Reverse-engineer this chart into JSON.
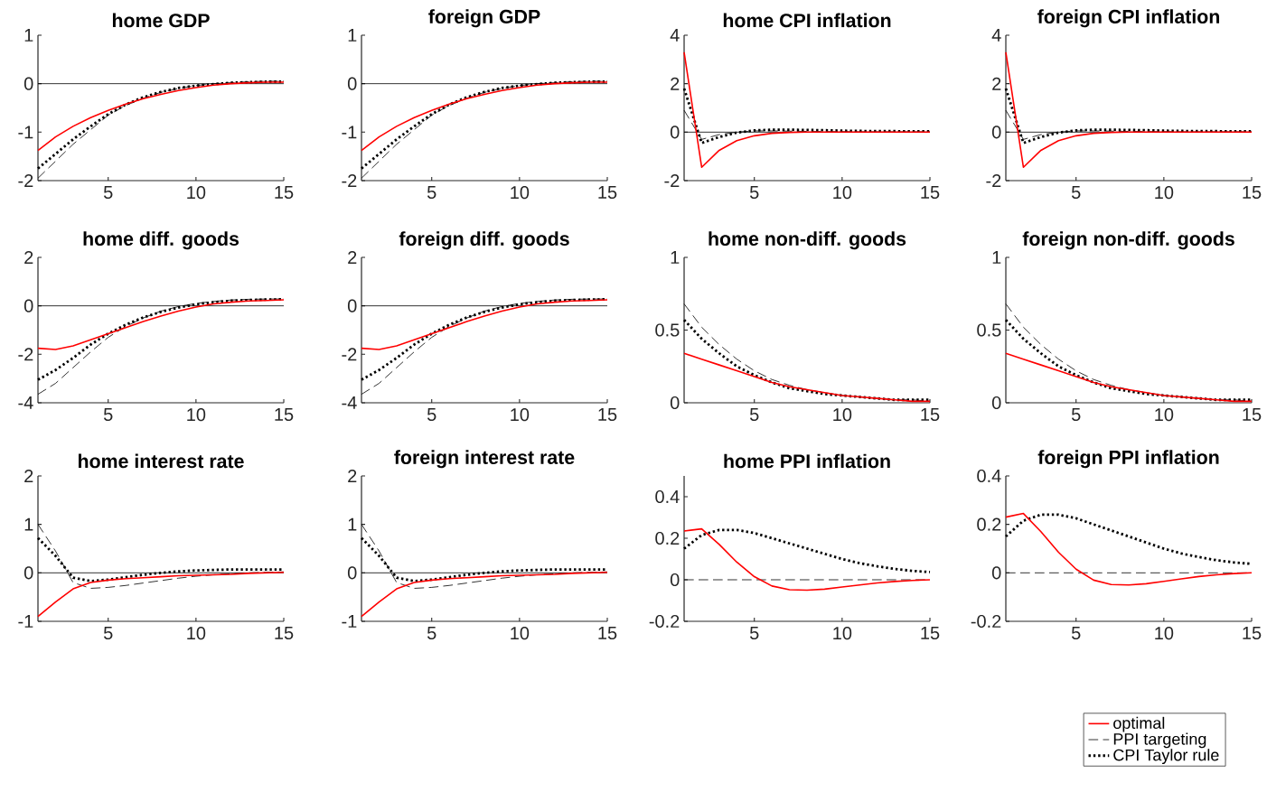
{
  "chart_data": [
    {
      "type": "line",
      "title": "home GDP",
      "x": [
        1,
        2,
        3,
        4,
        5,
        6,
        7,
        8,
        9,
        10,
        11,
        12,
        13,
        14,
        15
      ],
      "xlim": [
        1,
        15
      ],
      "xticks": [
        5,
        10,
        15
      ],
      "ylim": [
        -2,
        1
      ],
      "yticks": [
        -2,
        -1,
        0,
        1
      ],
      "ref_lines": [
        {
          "axis": "y",
          "value": 0,
          "color": "#000000"
        }
      ],
      "series": [
        {
          "color": "#ff0000",
          "line_style": "solid",
          "values": [
            -1.38,
            -1.1,
            -0.88,
            -0.7,
            -0.55,
            -0.42,
            -0.31,
            -0.22,
            -0.14,
            -0.08,
            -0.03,
            0.0,
            0.02,
            0.03,
            0.03
          ]
        },
        {
          "color": "#000000",
          "line_style": "dashed",
          "values": [
            -1.95,
            -1.6,
            -1.25,
            -0.95,
            -0.65,
            -0.45,
            -0.3,
            -0.18,
            -0.1,
            -0.04,
            0.0,
            0.02,
            0.04,
            0.05,
            0.05
          ]
        },
        {
          "color": "#000000",
          "line_style": "dotted",
          "values": [
            -1.75,
            -1.45,
            -1.15,
            -0.88,
            -0.63,
            -0.43,
            -0.28,
            -0.17,
            -0.09,
            -0.04,
            -0.01,
            0.02,
            0.03,
            0.04,
            0.04
          ]
        }
      ]
    },
    {
      "type": "line",
      "title": "foreign GDP",
      "x": [
        1,
        2,
        3,
        4,
        5,
        6,
        7,
        8,
        9,
        10,
        11,
        12,
        13,
        14,
        15
      ],
      "xlim": [
        1,
        15
      ],
      "xticks": [
        5,
        10,
        15
      ],
      "ylim": [
        -2,
        1
      ],
      "yticks": [
        -2,
        -1,
        0,
        1
      ],
      "ref_lines": [
        {
          "axis": "y",
          "value": 0,
          "color": "#000000"
        }
      ],
      "series": [
        {
          "color": "#ff0000",
          "line_style": "solid",
          "values": [
            -1.38,
            -1.1,
            -0.88,
            -0.7,
            -0.55,
            -0.42,
            -0.31,
            -0.22,
            -0.14,
            -0.08,
            -0.03,
            0.0,
            0.02,
            0.03,
            0.03
          ]
        },
        {
          "color": "#000000",
          "line_style": "dashed",
          "values": [
            -1.95,
            -1.6,
            -1.25,
            -0.95,
            -0.65,
            -0.45,
            -0.3,
            -0.18,
            -0.1,
            -0.04,
            0.0,
            0.02,
            0.04,
            0.05,
            0.05
          ]
        },
        {
          "color": "#000000",
          "line_style": "dotted",
          "values": [
            -1.75,
            -1.45,
            -1.15,
            -0.88,
            -0.63,
            -0.43,
            -0.28,
            -0.17,
            -0.09,
            -0.04,
            -0.01,
            0.02,
            0.03,
            0.04,
            0.04
          ]
        }
      ]
    },
    {
      "type": "line",
      "title": "home CPI inflation",
      "x": [
        1,
        2,
        3,
        4,
        5,
        6,
        7,
        8,
        9,
        10,
        11,
        12,
        13,
        14,
        15
      ],
      "xlim": [
        1,
        15
      ],
      "xticks": [
        5,
        10,
        15
      ],
      "ylim": [
        -2,
        4
      ],
      "yticks": [
        -2,
        0,
        2,
        4
      ],
      "ref_lines": [
        {
          "axis": "y",
          "value": 0,
          "color": "#000000"
        }
      ],
      "series": [
        {
          "color": "#ff0000",
          "line_style": "solid",
          "values": [
            3.3,
            -1.45,
            -0.75,
            -0.35,
            -0.15,
            -0.05,
            -0.01,
            0,
            0,
            0,
            0,
            0,
            0,
            0,
            0
          ]
        },
        {
          "color": "#000000",
          "line_style": "dashed",
          "values": [
            0.9,
            -0.3,
            -0.1,
            0.0,
            0.05,
            0.05,
            0.04,
            0.03,
            0.02,
            0.02,
            0.01,
            0.01,
            0.01,
            0.01,
            0.01
          ]
        },
        {
          "color": "#000000",
          "line_style": "dotted",
          "values": [
            1.8,
            -0.45,
            -0.2,
            -0.02,
            0.07,
            0.1,
            0.1,
            0.09,
            0.08,
            0.06,
            0.05,
            0.04,
            0.04,
            0.03,
            0.03
          ]
        }
      ]
    },
    {
      "type": "line",
      "title": "foreign CPI inflation",
      "x": [
        1,
        2,
        3,
        4,
        5,
        6,
        7,
        8,
        9,
        10,
        11,
        12,
        13,
        14,
        15
      ],
      "xlim": [
        1,
        15
      ],
      "xticks": [
        5,
        10,
        15
      ],
      "ylim": [
        -2,
        4
      ],
      "yticks": [
        -2,
        0,
        2,
        4
      ],
      "ref_lines": [
        {
          "axis": "y",
          "value": 0,
          "color": "#000000"
        }
      ],
      "series": [
        {
          "color": "#ff0000",
          "line_style": "solid",
          "values": [
            3.3,
            -1.45,
            -0.75,
            -0.35,
            -0.15,
            -0.05,
            -0.01,
            0,
            0,
            0,
            0,
            0,
            0,
            0,
            0
          ]
        },
        {
          "color": "#000000",
          "line_style": "dashed",
          "values": [
            0.9,
            -0.3,
            -0.1,
            0.0,
            0.05,
            0.05,
            0.04,
            0.03,
            0.02,
            0.02,
            0.01,
            0.01,
            0.01,
            0.01,
            0.01
          ]
        },
        {
          "color": "#000000",
          "line_style": "dotted",
          "values": [
            1.8,
            -0.45,
            -0.2,
            -0.02,
            0.07,
            0.1,
            0.1,
            0.09,
            0.08,
            0.06,
            0.05,
            0.04,
            0.04,
            0.03,
            0.03
          ]
        }
      ]
    },
    {
      "type": "line",
      "title": "home diff. goods",
      "x": [
        1,
        2,
        3,
        4,
        5,
        6,
        7,
        8,
        9,
        10,
        11,
        12,
        13,
        14,
        15
      ],
      "xlim": [
        1,
        15
      ],
      "xticks": [
        5,
        10,
        15
      ],
      "ylim": [
        -4,
        2
      ],
      "yticks": [
        -4,
        -2,
        0,
        2
      ],
      "ref_lines": [
        {
          "axis": "y",
          "value": 0,
          "color": "#000000"
        }
      ],
      "series": [
        {
          "color": "#ff0000",
          "line_style": "solid",
          "values": [
            -1.75,
            -1.8,
            -1.65,
            -1.4,
            -1.15,
            -0.9,
            -0.65,
            -0.42,
            -0.22,
            -0.05,
            0.08,
            0.15,
            0.2,
            0.22,
            0.25
          ]
        },
        {
          "color": "#000000",
          "line_style": "dashed",
          "values": [
            -3.65,
            -3.2,
            -2.55,
            -1.9,
            -1.3,
            -0.85,
            -0.5,
            -0.22,
            -0.03,
            0.1,
            0.18,
            0.24,
            0.27,
            0.28,
            0.28
          ]
        },
        {
          "color": "#000000",
          "line_style": "dotted",
          "values": [
            -3.05,
            -2.65,
            -2.15,
            -1.6,
            -1.15,
            -0.78,
            -0.48,
            -0.25,
            -0.07,
            0.06,
            0.15,
            0.21,
            0.24,
            0.26,
            0.27
          ]
        }
      ]
    },
    {
      "type": "line",
      "title": "foreign diff. goods",
      "x": [
        1,
        2,
        3,
        4,
        5,
        6,
        7,
        8,
        9,
        10,
        11,
        12,
        13,
        14,
        15
      ],
      "xlim": [
        1,
        15
      ],
      "xticks": [
        5,
        10,
        15
      ],
      "ylim": [
        -4,
        2
      ],
      "yticks": [
        -4,
        -2,
        0,
        2
      ],
      "ref_lines": [
        {
          "axis": "y",
          "value": 0,
          "color": "#000000"
        }
      ],
      "series": [
        {
          "color": "#ff0000",
          "line_style": "solid",
          "values": [
            -1.75,
            -1.8,
            -1.65,
            -1.4,
            -1.15,
            -0.9,
            -0.65,
            -0.42,
            -0.22,
            -0.05,
            0.08,
            0.15,
            0.2,
            0.22,
            0.25
          ]
        },
        {
          "color": "#000000",
          "line_style": "dashed",
          "values": [
            -3.65,
            -3.2,
            -2.55,
            -1.9,
            -1.3,
            -0.85,
            -0.5,
            -0.22,
            -0.03,
            0.1,
            0.18,
            0.24,
            0.27,
            0.28,
            0.28
          ]
        },
        {
          "color": "#000000",
          "line_style": "dotted",
          "values": [
            -3.05,
            -2.65,
            -2.15,
            -1.6,
            -1.15,
            -0.78,
            -0.48,
            -0.25,
            -0.07,
            0.06,
            0.15,
            0.21,
            0.24,
            0.26,
            0.27
          ]
        }
      ]
    },
    {
      "type": "line",
      "title": "home non-diff. goods",
      "x": [
        1,
        2,
        3,
        4,
        5,
        6,
        7,
        8,
        9,
        10,
        11,
        12,
        13,
        14,
        15
      ],
      "xlim": [
        1,
        15
      ],
      "xticks": [
        5,
        10,
        15
      ],
      "ylim": [
        0,
        1
      ],
      "yticks": [
        0,
        0.5,
        1
      ],
      "series": [
        {
          "color": "#ff0000",
          "line_style": "solid",
          "values": [
            0.34,
            0.3,
            0.26,
            0.22,
            0.18,
            0.14,
            0.11,
            0.09,
            0.07,
            0.05,
            0.04,
            0.03,
            0.02,
            0.01,
            0.01
          ]
        },
        {
          "color": "#000000",
          "line_style": "dashed",
          "values": [
            0.68,
            0.52,
            0.4,
            0.3,
            0.22,
            0.16,
            0.12,
            0.09,
            0.07,
            0.05,
            0.04,
            0.03,
            0.02,
            0.02,
            0.01
          ]
        },
        {
          "color": "#000000",
          "line_style": "dotted",
          "values": [
            0.57,
            0.44,
            0.34,
            0.25,
            0.19,
            0.14,
            0.1,
            0.08,
            0.06,
            0.05,
            0.04,
            0.03,
            0.02,
            0.02,
            0.02
          ]
        }
      ]
    },
    {
      "type": "line",
      "title": "foreign non-diff. goods",
      "x": [
        1,
        2,
        3,
        4,
        5,
        6,
        7,
        8,
        9,
        10,
        11,
        12,
        13,
        14,
        15
      ],
      "xlim": [
        1,
        15
      ],
      "xticks": [
        5,
        10,
        15
      ],
      "ylim": [
        0,
        1
      ],
      "yticks": [
        0,
        0.5,
        1
      ],
      "series": [
        {
          "color": "#ff0000",
          "line_style": "solid",
          "values": [
            0.34,
            0.3,
            0.26,
            0.22,
            0.18,
            0.14,
            0.11,
            0.09,
            0.07,
            0.05,
            0.04,
            0.03,
            0.02,
            0.01,
            0.01
          ]
        },
        {
          "color": "#000000",
          "line_style": "dashed",
          "values": [
            0.68,
            0.52,
            0.4,
            0.3,
            0.22,
            0.16,
            0.12,
            0.09,
            0.07,
            0.05,
            0.04,
            0.03,
            0.02,
            0.02,
            0.01
          ]
        },
        {
          "color": "#000000",
          "line_style": "dotted",
          "values": [
            0.57,
            0.44,
            0.34,
            0.25,
            0.19,
            0.14,
            0.1,
            0.08,
            0.06,
            0.05,
            0.04,
            0.03,
            0.02,
            0.02,
            0.02
          ]
        }
      ]
    },
    {
      "type": "line",
      "title": "home interest rate",
      "x": [
        1,
        2,
        3,
        4,
        5,
        6,
        7,
        8,
        9,
        10,
        11,
        12,
        13,
        14,
        15
      ],
      "xlim": [
        1,
        15
      ],
      "xticks": [
        5,
        10,
        15
      ],
      "ylim": [
        -1,
        2
      ],
      "yticks": [
        -1,
        0,
        1,
        2
      ],
      "ref_lines": [
        {
          "axis": "y",
          "value": 0,
          "color": "#000000"
        }
      ],
      "series": [
        {
          "color": "#ff0000",
          "line_style": "solid",
          "values": [
            -0.9,
            -0.6,
            -0.33,
            -0.2,
            -0.15,
            -0.12,
            -0.1,
            -0.08,
            -0.06,
            -0.05,
            -0.04,
            -0.03,
            -0.01,
            0.0,
            0.01
          ]
        },
        {
          "color": "#000000",
          "line_style": "dashed",
          "values": [
            1.0,
            0.45,
            -0.2,
            -0.32,
            -0.3,
            -0.26,
            -0.21,
            -0.16,
            -0.11,
            -0.07,
            -0.04,
            -0.02,
            0.0,
            0.01,
            0.02
          ]
        },
        {
          "color": "#000000",
          "line_style": "dotted",
          "values": [
            0.72,
            0.35,
            -0.1,
            -0.17,
            -0.14,
            -0.09,
            -0.04,
            0.0,
            0.03,
            0.05,
            0.06,
            0.07,
            0.07,
            0.07,
            0.07
          ]
        }
      ]
    },
    {
      "type": "line",
      "title": "foreign interest rate",
      "x": [
        1,
        2,
        3,
        4,
        5,
        6,
        7,
        8,
        9,
        10,
        11,
        12,
        13,
        14,
        15
      ],
      "xlim": [
        1,
        15
      ],
      "xticks": [
        5,
        10,
        15
      ],
      "ylim": [
        -1,
        2
      ],
      "yticks": [
        -1,
        0,
        1,
        2
      ],
      "ref_lines": [
        {
          "axis": "y",
          "value": 0,
          "color": "#000000"
        }
      ],
      "series": [
        {
          "color": "#ff0000",
          "line_style": "solid",
          "values": [
            -0.9,
            -0.6,
            -0.33,
            -0.2,
            -0.15,
            -0.12,
            -0.1,
            -0.08,
            -0.06,
            -0.05,
            -0.04,
            -0.03,
            -0.01,
            0.0,
            0.01
          ]
        },
        {
          "color": "#000000",
          "line_style": "dashed",
          "values": [
            1.0,
            0.45,
            -0.2,
            -0.32,
            -0.3,
            -0.26,
            -0.21,
            -0.16,
            -0.11,
            -0.07,
            -0.04,
            -0.02,
            0.0,
            0.01,
            0.02
          ]
        },
        {
          "color": "#000000",
          "line_style": "dotted",
          "values": [
            0.72,
            0.35,
            -0.1,
            -0.17,
            -0.14,
            -0.09,
            -0.04,
            0.0,
            0.03,
            0.05,
            0.06,
            0.07,
            0.07,
            0.07,
            0.07
          ]
        }
      ]
    },
    {
      "type": "line",
      "title": "home PPI inflation",
      "x": [
        1,
        2,
        3,
        4,
        5,
        6,
        7,
        8,
        9,
        10,
        11,
        12,
        13,
        14,
        15
      ],
      "xlim": [
        1,
        15
      ],
      "xticks": [
        5,
        10,
        15
      ],
      "ylim": [
        -0.2,
        0.5
      ],
      "yticks": [
        -0.2,
        0,
        0.2,
        0.4
      ],
      "series": [
        {
          "color": "#ff0000",
          "line_style": "solid",
          "values": [
            0.235,
            0.245,
            0.17,
            0.085,
            0.015,
            -0.03,
            -0.048,
            -0.05,
            -0.045,
            -0.035,
            -0.025,
            -0.015,
            -0.008,
            -0.003,
            0.0
          ]
        },
        {
          "color": "#000000",
          "line_style": "dashed",
          "values": [
            0,
            0,
            0,
            0,
            0,
            0,
            0,
            0,
            0,
            0,
            0,
            0,
            0,
            0,
            0
          ]
        },
        {
          "color": "#000000",
          "line_style": "dotted",
          "values": [
            0.15,
            0.215,
            0.24,
            0.24,
            0.225,
            0.2,
            0.175,
            0.15,
            0.125,
            0.1,
            0.08,
            0.065,
            0.052,
            0.043,
            0.037
          ]
        }
      ]
    },
    {
      "type": "line",
      "title": "foreign PPI inflation",
      "x": [
        1,
        2,
        3,
        4,
        5,
        6,
        7,
        8,
        9,
        10,
        11,
        12,
        13,
        14,
        15
      ],
      "xlim": [
        1,
        15
      ],
      "xticks": [
        5,
        10,
        15
      ],
      "ylim": [
        -0.2,
        0.4
      ],
      "yticks": [
        -0.2,
        0,
        0.2,
        0.4
      ],
      "legend": "bottom right",
      "series": [
        {
          "name": "optimal",
          "color": "#ff0000",
          "line_style": "solid",
          "values": [
            0.23,
            0.245,
            0.17,
            0.085,
            0.015,
            -0.03,
            -0.048,
            -0.05,
            -0.045,
            -0.035,
            -0.025,
            -0.015,
            -0.008,
            -0.003,
            0.0
          ]
        },
        {
          "name": "PPI targeting",
          "color": "#000000",
          "line_style": "dashed",
          "values": [
            0,
            0,
            0,
            0,
            0,
            0,
            0,
            0,
            0,
            0,
            0,
            0,
            0,
            0,
            0
          ]
        },
        {
          "name": "CPI Taylor rule",
          "color": "#000000",
          "line_style": "dotted",
          "values": [
            0.15,
            0.215,
            0.24,
            0.24,
            0.225,
            0.2,
            0.175,
            0.15,
            0.125,
            0.1,
            0.08,
            0.065,
            0.052,
            0.043,
            0.037
          ]
        }
      ]
    }
  ]
}
